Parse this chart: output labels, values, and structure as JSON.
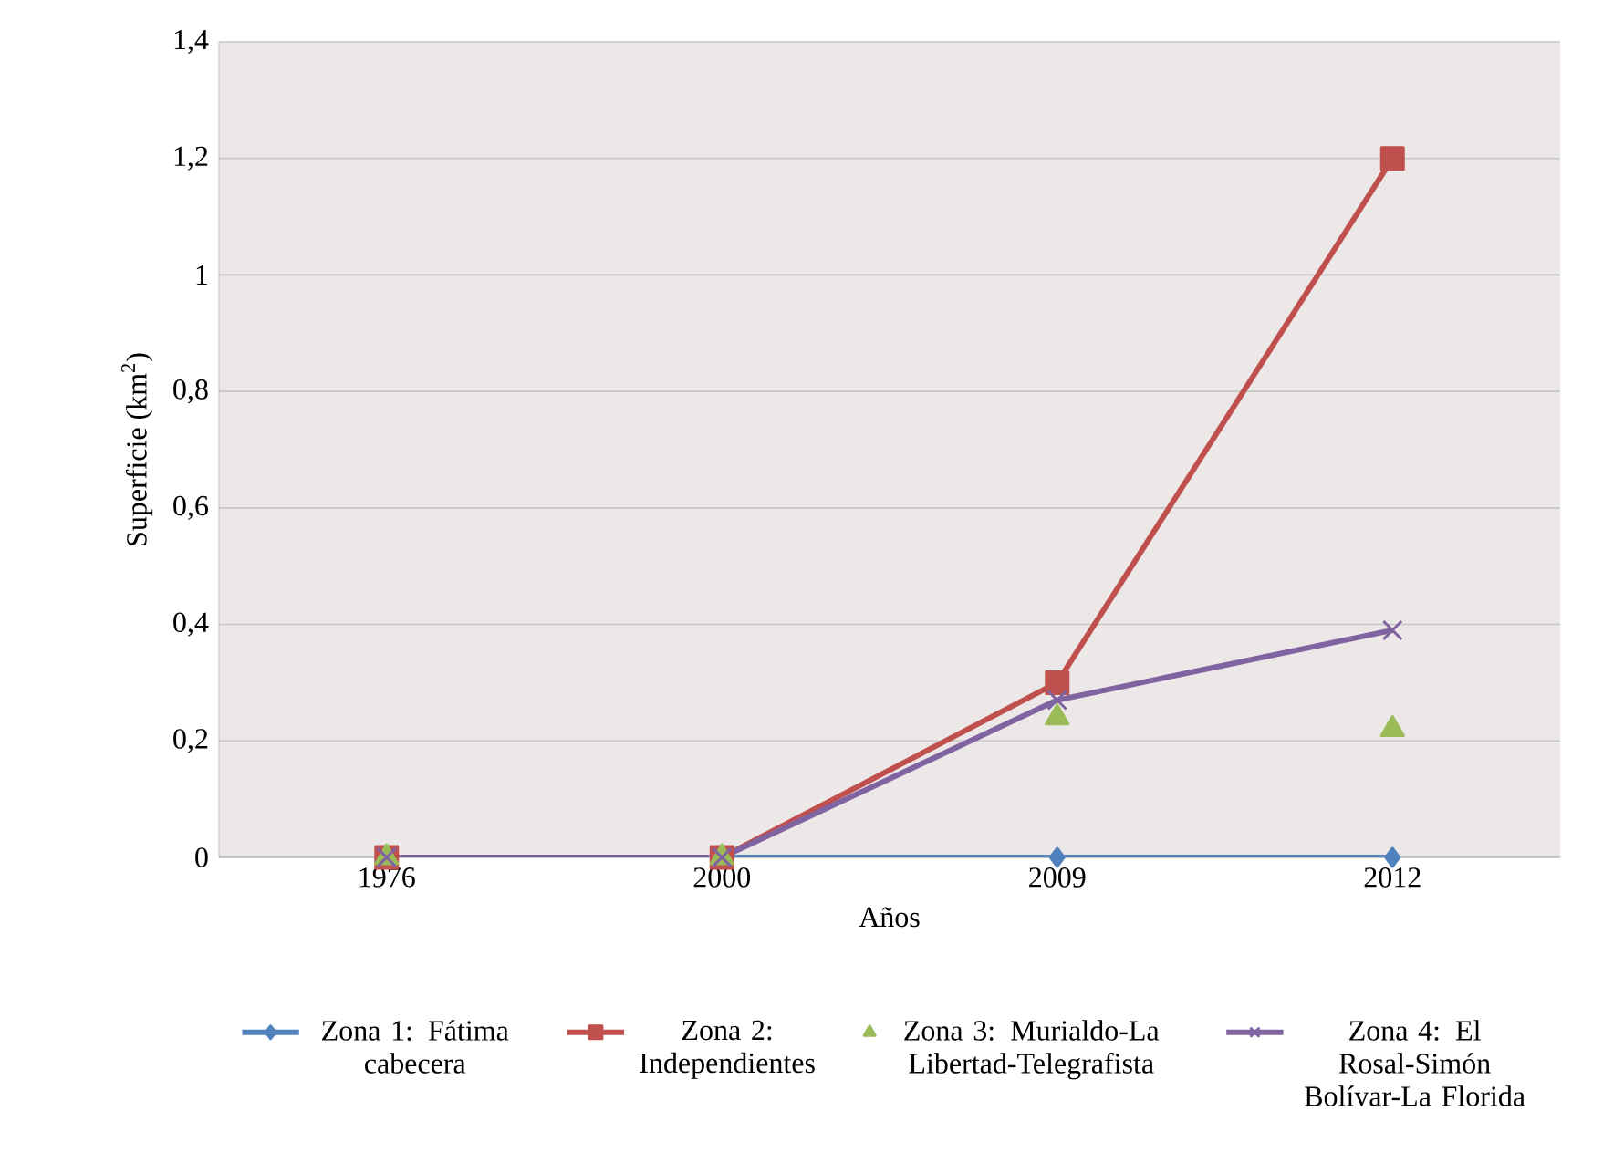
{
  "chart_data": {
    "type": "line",
    "xlabel": "Años",
    "ylabel": "Superficie (km$^{2}$)",
    "categories": [
      "1976",
      "2000",
      "2009",
      "2012"
    ],
    "series": [
      {
        "name": "Zona 1: Fátima cabecera",
        "color": "#4f81bd",
        "marker": "diamond",
        "values": [
          0,
          0,
          0,
          0
        ]
      },
      {
        "name": "Zona 2: Independientes",
        "color": "#c0504d",
        "marker": "square",
        "values": [
          0,
          0,
          0.3,
          1.2
        ]
      },
      {
        "name": "Zona 3: Murialdo-La Libertad-Telegrafista",
        "color": "#9bbb59",
        "marker": "triangle",
        "type": "scatter",
        "values": [
          0,
          0,
          0.24,
          0.22
        ]
      },
      {
        "name": "Zona 4: El Rosal-Simón Bolívar-La Florida",
        "color": "#8064a2",
        "marker": "cross",
        "values": [
          0,
          0,
          0.27,
          0.39
        ]
      }
    ],
    "ylim": [
      0,
      1.4
    ],
    "yticks": [
      {
        "value": 0,
        "label": "0"
      },
      {
        "value": 0.2,
        "label": "0,2"
      },
      {
        "value": 0.4,
        "label": "0,4"
      },
      {
        "value": 0.6,
        "label": "0,6"
      },
      {
        "value": 0.8,
        "label": "0,8"
      },
      {
        "value": 1,
        "label": "1"
      },
      {
        "value": 1.2,
        "label": "1,2"
      },
      {
        "value": 1.4,
        "label": "1,4"
      }
    ],
    "grid": "y",
    "legend": "bottom"
  }
}
